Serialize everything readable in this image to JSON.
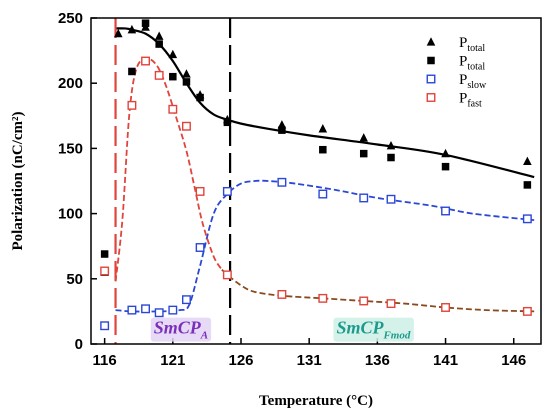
{
  "chart_data": {
    "type": "scatter",
    "xlabel": "Temperature (°C)",
    "ylabel": "Polarization (nC/cm²)",
    "xlim": [
      115,
      148
    ],
    "ylim": [
      0,
      250
    ],
    "xticks": [
      "116",
      "121",
      "126",
      "131",
      "136",
      "141",
      "146"
    ],
    "yticks": [
      "0",
      "50",
      "100",
      "150",
      "200",
      "250"
    ],
    "vlines": [
      {
        "x": 116.8,
        "color": "#e0443b"
      },
      {
        "x": 125.2,
        "color": "#000000"
      }
    ],
    "series": [
      {
        "name": "P",
        "sub": "total",
        "marker": "triangle",
        "color": "#000000",
        "x": [
          116,
          117,
          118,
          119,
          120,
          121,
          122,
          123,
          125,
          129,
          132,
          135,
          137,
          141,
          147
        ],
        "y": [
          55,
          238,
          241,
          243,
          236,
          222,
          207,
          191,
          172,
          168,
          165,
          158,
          152,
          146,
          140
        ]
      },
      {
        "name": "P",
        "sub": "total",
        "marker": "square",
        "color": "#000000",
        "x": [
          116,
          118,
          119,
          120,
          121,
          122,
          123,
          125,
          129,
          132,
          135,
          137,
          141,
          147
        ],
        "y": [
          69,
          209,
          246,
          230,
          205,
          201,
          189,
          170,
          164,
          149,
          146,
          143,
          136,
          122
        ]
      },
      {
        "name": "P",
        "sub": "slow",
        "marker": "open-square",
        "color": "#2b47d6",
        "x": [
          116,
          118,
          119,
          120,
          121,
          122,
          123,
          125,
          129,
          132,
          135,
          137,
          141,
          147
        ],
        "y": [
          14,
          26,
          27,
          24,
          26,
          34,
          74,
          117,
          124,
          115,
          112,
          111,
          102,
          96
        ]
      },
      {
        "name": "P",
        "sub": "fast",
        "marker": "open-square",
        "color": "#e0443b",
        "x": [
          116,
          118,
          119,
          120,
          121,
          122,
          123,
          125,
          129,
          132,
          135,
          137,
          141,
          147
        ],
        "y": [
          56,
          183,
          217,
          206,
          180,
          167,
          117,
          53,
          38,
          35,
          33,
          31,
          28,
          25
        ]
      }
    ],
    "fits": [
      {
        "color": "#000000",
        "dash": "solid",
        "x": [
          116.8,
          117.5,
          118,
          119,
          120,
          121,
          122,
          123,
          124,
          125,
          126,
          128,
          131,
          136,
          141,
          147.5
        ],
        "y": [
          242,
          242,
          241,
          238,
          230,
          217,
          200,
          185,
          176,
          172,
          169,
          165,
          160,
          153,
          145,
          128
        ]
      },
      {
        "color": "#2b47d6",
        "dash": "dashed",
        "x": [
          116.8,
          118,
          120,
          121.5,
          122.2,
          123,
          124,
          125,
          126,
          127,
          128,
          130,
          133,
          136,
          140,
          143,
          147.5
        ],
        "y": [
          26,
          25,
          25,
          26,
          30,
          60,
          100,
          115,
          123,
          125,
          125,
          123,
          118,
          112,
          106,
          100,
          95
        ]
      },
      {
        "color": "#e0443b",
        "dash": "dashed",
        "x": [
          116.8,
          117.3,
          117.8,
          118.3,
          119,
          119.8,
          120.5,
          121.3,
          122,
          122.6,
          123.2,
          124,
          124.6
        ],
        "y": [
          48,
          95,
          175,
          210,
          219,
          214,
          198,
          172,
          148,
          120,
          92,
          67,
          57
        ]
      },
      {
        "color": "#8a4a1e",
        "dash": "dashed",
        "x": [
          124.6,
          125,
          126,
          127,
          129,
          132,
          135,
          138,
          141,
          144,
          147.5
        ],
        "y": [
          57,
          53,
          45,
          40,
          37,
          35,
          33,
          31,
          28,
          26,
          25
        ]
      }
    ],
    "annotations": [
      {
        "text": "SmCP",
        "sub": "A",
        "x": 119.6,
        "y": 8,
        "color": "#7b2fb8",
        "bg": "#e3d4f4"
      },
      {
        "text": "SmCP",
        "sub": "Fmod",
        "x": 133,
        "y": 8,
        "color": "#1e9a8c",
        "bg": "#cdeee6"
      }
    ],
    "legend_position": "top-right"
  }
}
